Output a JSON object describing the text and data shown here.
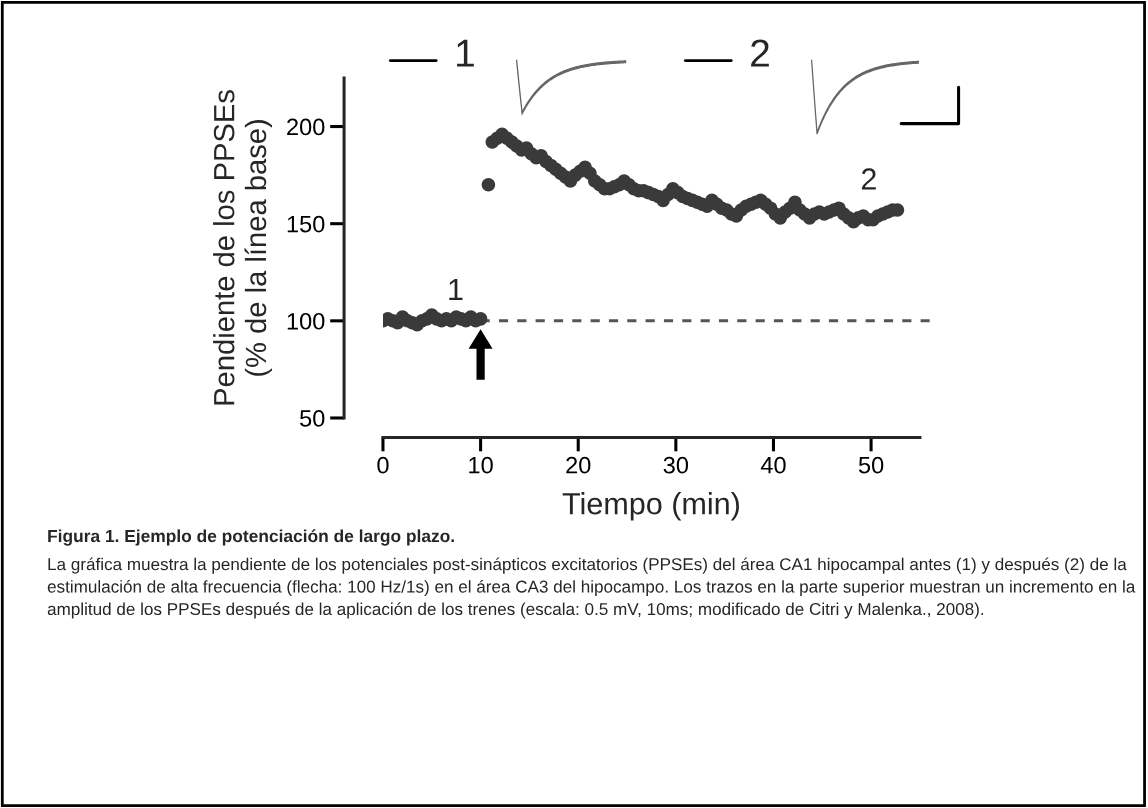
{
  "chart_data": {
    "type": "scatter",
    "xlabel": "Tiempo (min)",
    "ylabel": "Pendiente de los PPSEs\n(% de la línea base)",
    "x": [
      0,
      0.5,
      1,
      1.5,
      2,
      2.5,
      3,
      3.5,
      4,
      4.5,
      5,
      5.5,
      6,
      6.5,
      7,
      7.5,
      8,
      8.5,
      9,
      9.5,
      10,
      10.8,
      11.2,
      11.7,
      12.2,
      12.7,
      13.2,
      13.7,
      14.2,
      14.7,
      15.2,
      15.7,
      16.2,
      16.7,
      17.2,
      17.7,
      18.2,
      18.7,
      19.2,
      19.7,
      20.2,
      20.7,
      21.2,
      21.7,
      22.2,
      22.7,
      23.2,
      23.7,
      24.2,
      24.7,
      25.2,
      25.7,
      26.2,
      26.7,
      27.2,
      27.7,
      28.2,
      28.7,
      29.2,
      29.7,
      30.2,
      30.7,
      31.2,
      31.7,
      32.2,
      32.7,
      33.2,
      33.7,
      34.2,
      34.7,
      35.2,
      35.7,
      36.2,
      36.7,
      37.2,
      37.7,
      38.2,
      38.7,
      39.2,
      39.7,
      40.2,
      40.7,
      41.2,
      41.7,
      42.2,
      42.7,
      43.2,
      43.7,
      44.2,
      44.7,
      45.2,
      45.7,
      46.2,
      46.7,
      47.2,
      47.7,
      48.2,
      48.7,
      49.2,
      49.7,
      50.2,
      50.7,
      51.2,
      51.7,
      52.2,
      52.7
    ],
    "series": [
      {
        "color": "#3a3a3a",
        "values": [
          100,
          101,
          100,
          99,
          102,
          100,
          99,
          98,
          100,
          101,
          103,
          101,
          100,
          101,
          100,
          102,
          101,
          100,
          102,
          100,
          101,
          170,
          192,
          194,
          196,
          194,
          192,
          190,
          188,
          189,
          186,
          184,
          185,
          182,
          180,
          178,
          176,
          174,
          172,
          175,
          177,
          179,
          176,
          172,
          170,
          168,
          168,
          169,
          170,
          172,
          170,
          168,
          167,
          167,
          166,
          165,
          164,
          162,
          165,
          168,
          166,
          164,
          163,
          162,
          161,
          160,
          159,
          162,
          160,
          158,
          157,
          155,
          154,
          157,
          159,
          160,
          161,
          162,
          160,
          158,
          155,
          153,
          156,
          158,
          161,
          157,
          155,
          153,
          155,
          156,
          155,
          156,
          157,
          158,
          155,
          153,
          151,
          153,
          154,
          152,
          152,
          154,
          155,
          156,
          157,
          157
        ]
      }
    ],
    "marker": "circle",
    "xlim": [
      0,
      55
    ],
    "xticks": [
      0,
      10,
      20,
      30,
      40,
      50
    ],
    "ylim": [
      50,
      225
    ],
    "yticks": [
      50,
      100,
      150,
      200
    ],
    "grid": false,
    "ref_lines": [
      {
        "axis": "y",
        "value": 100,
        "color": "#555555",
        "line_style": "dashed"
      }
    ],
    "annotations": [
      "1",
      "2",
      "1",
      "2",
      "Figura 1. Ejemplo de potenciación de largo plazo.",
      "La gráfica muestra la pendiente de los potenciales post-sinápticos excitatorios (PPSEs) del área CA1 hipocampal antes (1) y después (2) de la estimulación de alta frecuencia (flecha: 100 Hz/1s) en el área CA3 del hipocampo. Los trazos en la parte superior muestran un incremento en la amplitud de los PPSEs después de la aplicación de los trenes (escala: 0.5 mV, 10ms; modificado de Citri y Malenka., 2008)."
    ]
  }
}
